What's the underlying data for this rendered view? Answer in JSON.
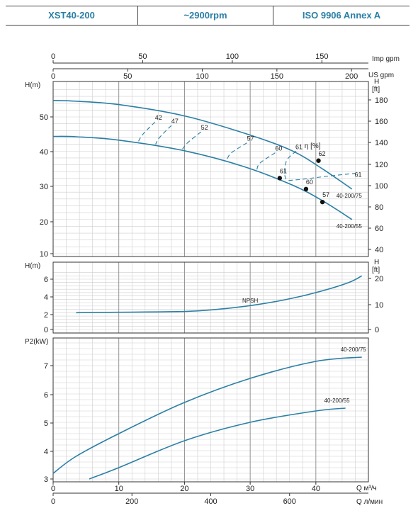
{
  "header": {
    "model": "XST40-200",
    "speed": "~2900rpm",
    "standard": "ISO 9906   Annex A"
  },
  "colors": {
    "curve": "#2a7fa5",
    "grid": "#cfcfcf",
    "axis": "#333333",
    "title": "#2a7fa5"
  },
  "axes": {
    "imp_gpm": {
      "label": "Imp gpm",
      "ticks": [
        "0",
        "50",
        "100",
        "150"
      ],
      "values": [
        0,
        50,
        100,
        150
      ]
    },
    "us_gpm": {
      "label": "US gpm",
      "ticks": [
        "0",
        "50",
        "100",
        "150",
        "200"
      ],
      "values": [
        0,
        50,
        100,
        150,
        200
      ]
    },
    "flow_m3h": {
      "label": "Q  м³/ч",
      "ticks": [
        "0",
        "10",
        "20",
        "30",
        "40"
      ],
      "values": [
        0,
        10,
        20,
        30,
        40
      ]
    },
    "flow_lmin": {
      "label": "Q  л/мин",
      "ticks": [
        "0",
        "200",
        "400",
        "600"
      ],
      "values": [
        0,
        200,
        400,
        600
      ]
    }
  },
  "chart_data": [
    {
      "type": "line",
      "name": "head",
      "ylabel": "H(m)",
      "ylabel_right": "H [ft]",
      "ylim": [
        10,
        58
      ],
      "yticks": [
        "10",
        "20",
        "30",
        "40",
        "50"
      ],
      "ytick_values": [
        10,
        20,
        30,
        40,
        50
      ],
      "yticks_right": [
        "40",
        "60",
        "80",
        "100",
        "120",
        "140",
        "160",
        "180"
      ],
      "ytick_right_values": [
        40,
        60,
        80,
        100,
        120,
        140,
        160,
        180
      ],
      "xlim": [
        0,
        48
      ],
      "efficiency_label": "η [%]",
      "series": [
        {
          "name": "40-200/75",
          "x": [
            0,
            3.5,
            10,
            20,
            30,
            36.5,
            41,
            45.5
          ],
          "y": [
            54.8,
            54.6,
            53.6,
            50.3,
            44.7,
            40,
            34.8,
            28.9
          ]
        },
        {
          "name": "40-200/55",
          "x": [
            0,
            3.5,
            10,
            20,
            29,
            36.5,
            41,
            45.5
          ],
          "y": [
            44.3,
            44.2,
            43.2,
            40.1,
            35.5,
            30,
            25.5,
            20
          ]
        }
      ],
      "efficiency_points": [
        {
          "label": "62",
          "x": 40.4,
          "y": 37.2,
          "dot": true
        },
        {
          "label": "61",
          "x": 34.5,
          "y": 32.1,
          "dot": true
        },
        {
          "label": "60",
          "x": 38.5,
          "y": 28.9,
          "dot": true
        },
        {
          "label": "57",
          "x": 41.0,
          "y": 25.1,
          "dot": true
        },
        {
          "label": "61",
          "x": 46.0,
          "y": 31.4,
          "dot": false
        }
      ],
      "efficiency_contours": [
        {
          "label": "42",
          "x": [
            15.5,
            13.7,
            13.0
          ],
          "y": [
            48.5,
            45.0,
            42.9
          ]
        },
        {
          "label": "47",
          "x": [
            18.0,
            16.2,
            15.6
          ],
          "y": [
            47.5,
            44.0,
            42.0
          ]
        },
        {
          "label": "52",
          "x": [
            22.5,
            20.5,
            19.7
          ],
          "y": [
            45.6,
            42.5,
            40.6
          ]
        },
        {
          "label": "57",
          "x": [
            29.5,
            27.2,
            26.5
          ],
          "y": [
            42.4,
            39.6,
            37.8
          ]
        },
        {
          "label": "60",
          "x": [
            33.8,
            31.5,
            31.0
          ],
          "y": [
            39.5,
            36.5,
            34.5
          ]
        },
        {
          "label": "61",
          "x": [
            37.0,
            35.5,
            35.4,
            37.0,
            41.5,
            46.0
          ],
          "y": [
            40.0,
            37.0,
            32.0,
            31.6,
            32.6,
            33.5
          ]
        }
      ]
    },
    {
      "type": "line",
      "name": "npsh",
      "ylabel": "H(m)",
      "ylabel_right": "H [ft]",
      "ylim": [
        0,
        7
      ],
      "yticks": [
        "0",
        "2",
        "4",
        "6"
      ],
      "ytick_values": [
        0,
        2,
        4,
        6
      ],
      "yticks_right": [
        "0",
        "10",
        "20"
      ],
      "ytick_right_values": [
        0,
        10,
        20
      ],
      "xlim": [
        0,
        48
      ],
      "series": [
        {
          "name": "NPSH",
          "x": [
            3.5,
            10,
            20,
            25,
            30,
            35,
            40,
            45,
            47
          ],
          "y": [
            2.0,
            2.05,
            2.15,
            2.4,
            2.85,
            3.5,
            4.4,
            5.6,
            6.4
          ]
        }
      ]
    },
    {
      "type": "line",
      "name": "power",
      "ylabel": "P2(kW)",
      "ylim": [
        3,
        7.9
      ],
      "yticks": [
        "3",
        "4",
        "5",
        "6",
        "7"
      ],
      "ytick_values": [
        3,
        4,
        5,
        6,
        7
      ],
      "xlim": [
        0,
        48
      ],
      "series": [
        {
          "name": "40-200/75",
          "x": [
            0,
            3.5,
            10,
            20,
            30,
            40,
            47
          ],
          "y": [
            3.2,
            3.8,
            4.6,
            5.7,
            6.55,
            7.15,
            7.3
          ]
        },
        {
          "name": "40-200/55",
          "x": [
            5.5,
            10,
            20,
            30,
            40,
            44.5
          ],
          "y": [
            3.0,
            3.4,
            4.35,
            5.0,
            5.4,
            5.5
          ]
        }
      ]
    }
  ]
}
